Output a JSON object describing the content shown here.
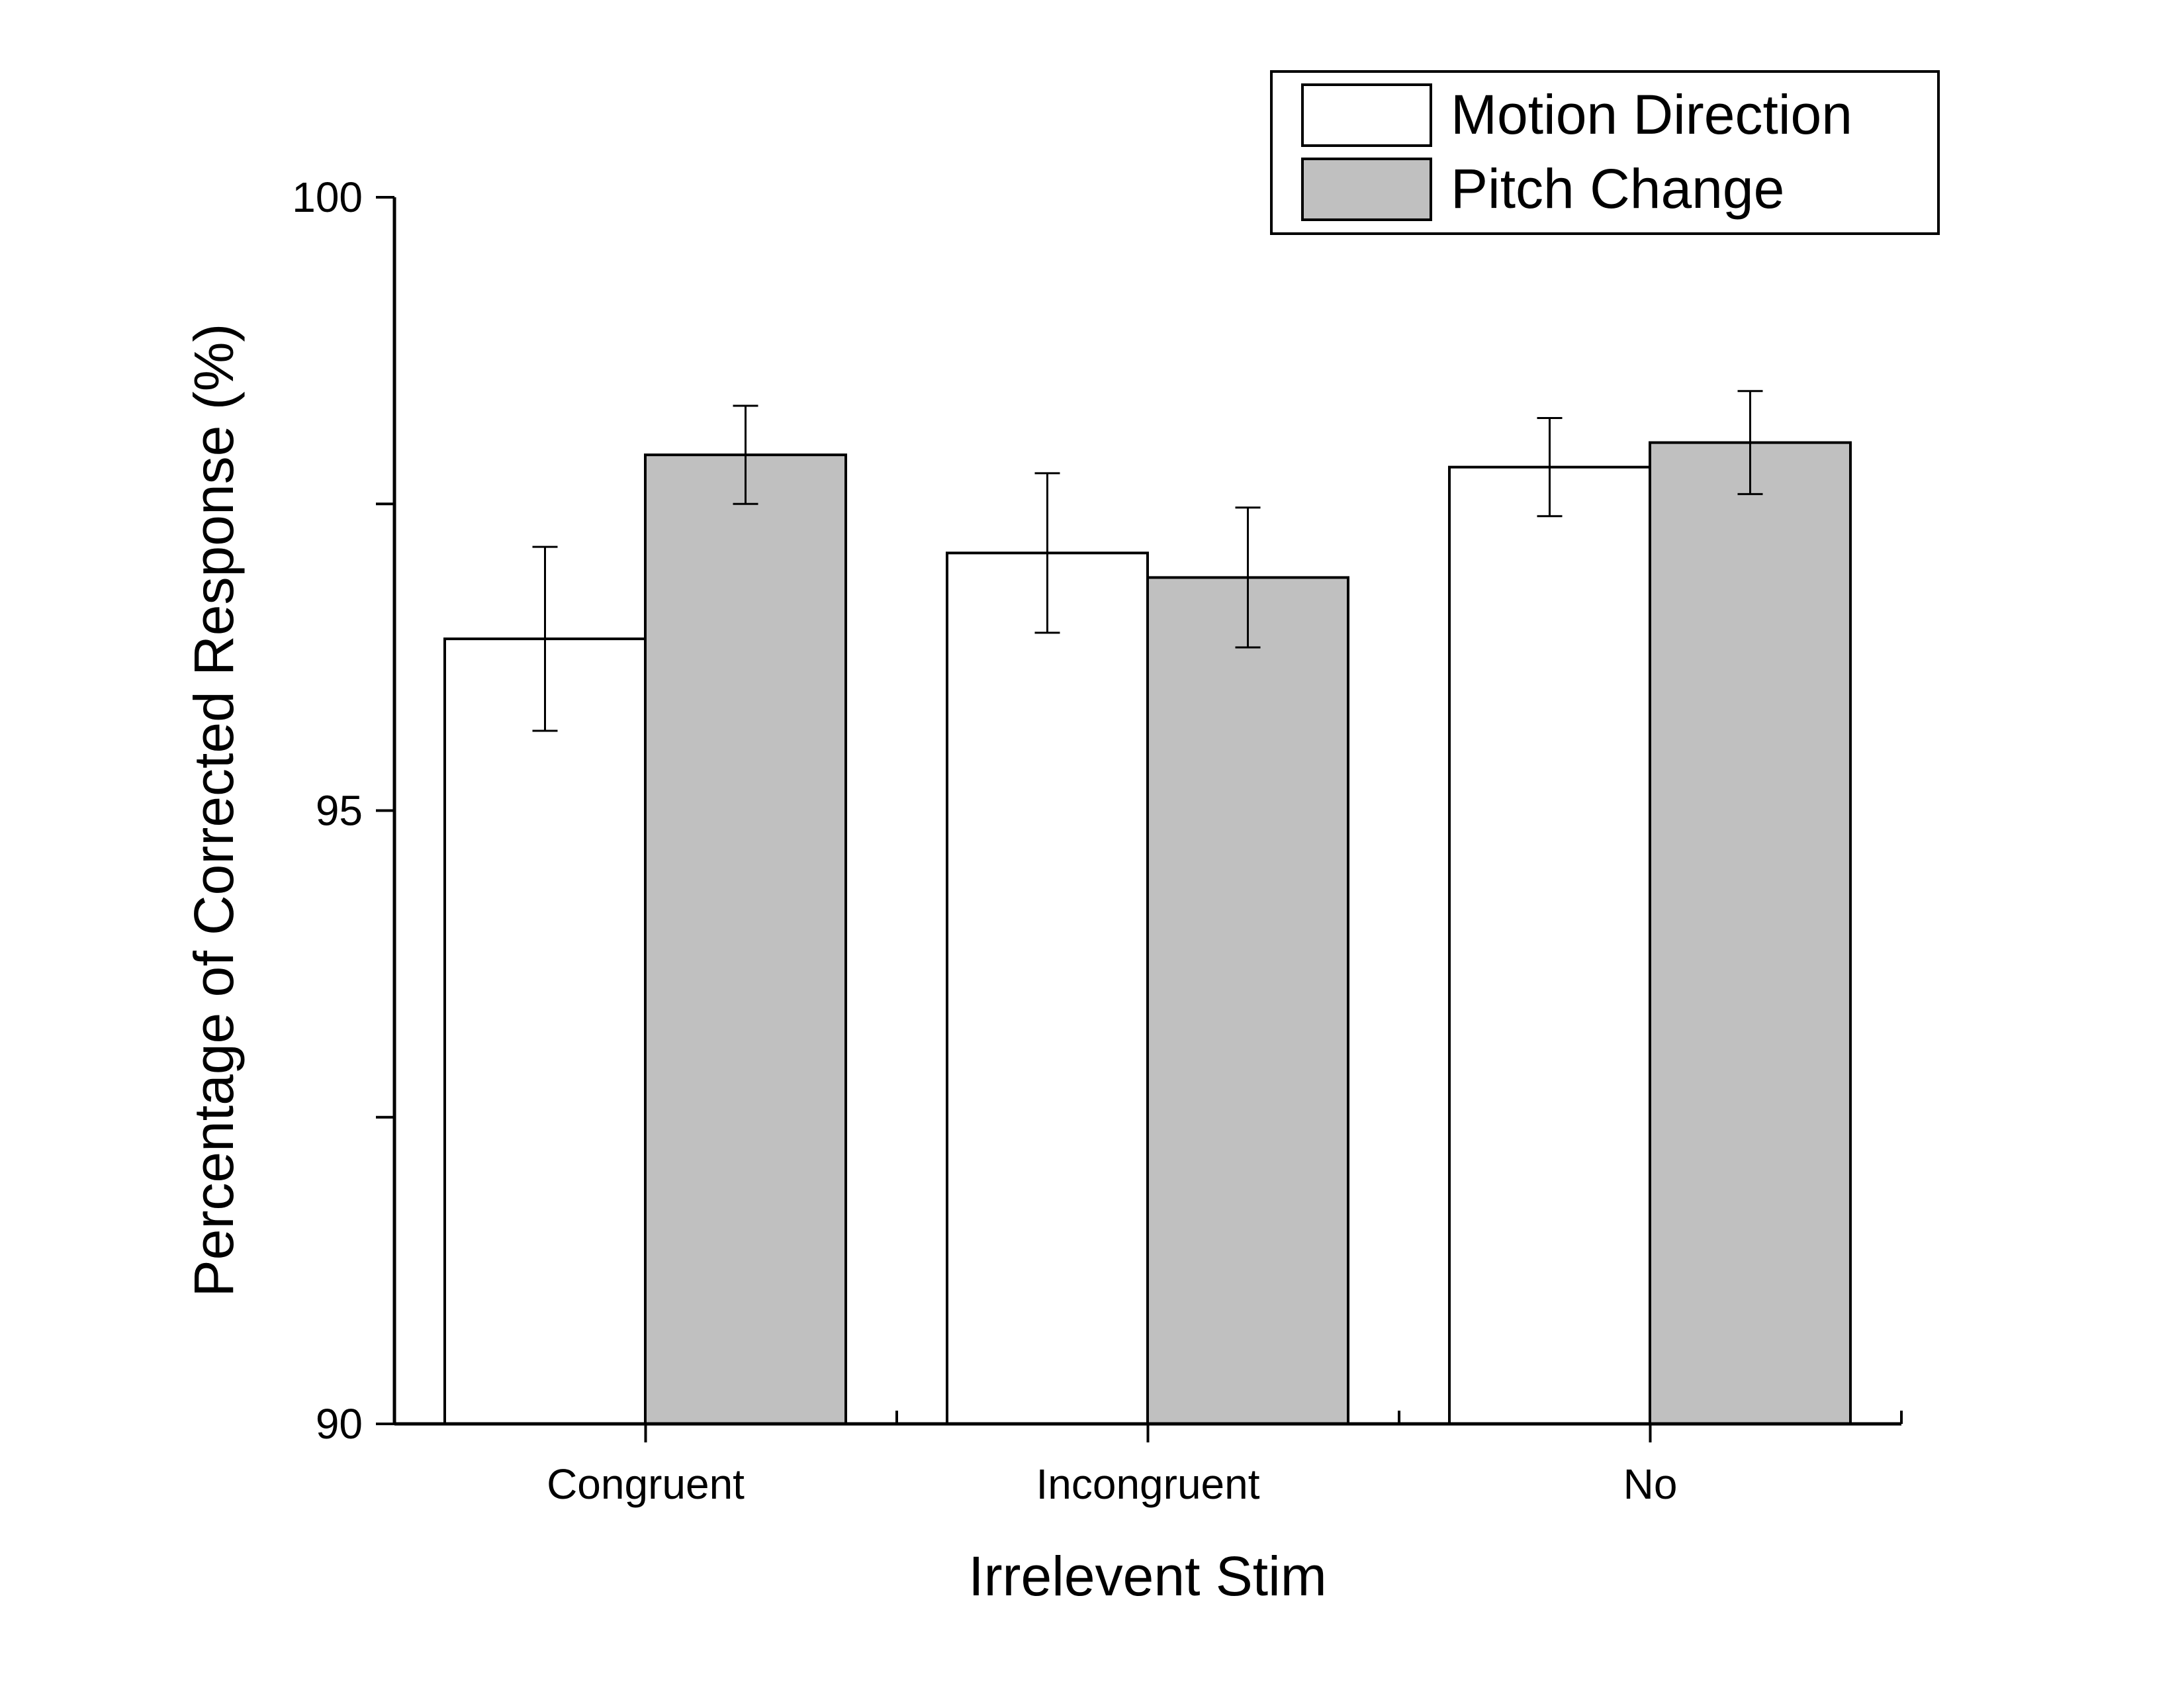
{
  "chart_data": {
    "type": "bar",
    "title": "",
    "xlabel": "Irrelevent Stim",
    "ylabel": "Percentage of Corrected Response (%)",
    "categories": [
      "Congruent",
      "Incongruent",
      "No"
    ],
    "ylim": [
      90,
      100
    ],
    "yticks": [
      90,
      92.5,
      95,
      97.5,
      100
    ],
    "ytick_labels": [
      "90",
      "",
      "95",
      "",
      "100"
    ],
    "legend_position": "top-right",
    "grid": false,
    "series": [
      {
        "name": "Motion Direction",
        "color": "#ffffff",
        "values": [
          96.4,
          97.1,
          97.8
        ],
        "errors": [
          0.75,
          0.65,
          0.4
        ]
      },
      {
        "name": "Pitch Change",
        "color": "#c0c0c0",
        "values": [
          97.9,
          96.9,
          98.0
        ],
        "errors": [
          0.4,
          0.57,
          0.42
        ]
      }
    ]
  }
}
